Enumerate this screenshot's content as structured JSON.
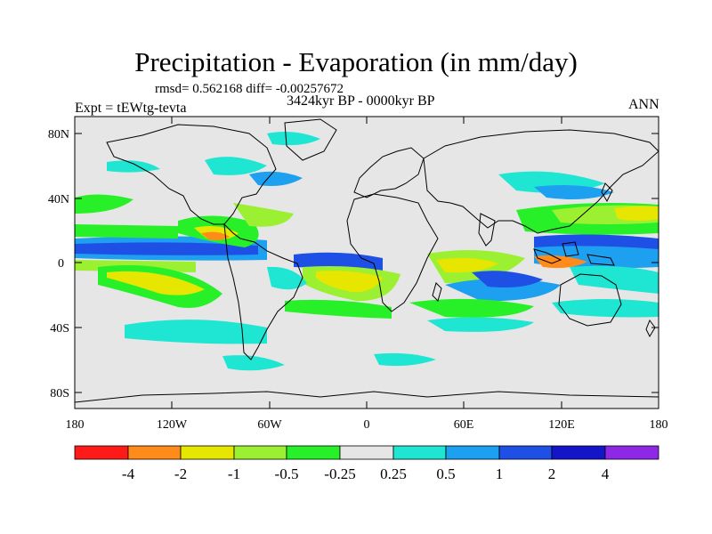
{
  "title": "Precipitation - Evaporation (in mm/day)",
  "stats": "rmsd= 0.562168  diff= -0.00257672",
  "period": "3424kyr BP - 0000kyr BP",
  "experiment": "Expt = tEWtg-tevta",
  "season": "ANN",
  "y_ticks": [
    "80N",
    "40N",
    "0",
    "40S",
    "80S"
  ],
  "x_ticks": [
    "180",
    "120W",
    "60W",
    "0",
    "60E",
    "120E",
    "180"
  ],
  "colorbar": {
    "colors": [
      "#ff1a1a",
      "#ff8c1a",
      "#e6e600",
      "#9bf032",
      "#28f028",
      "#e6e6e6",
      "#1ee6d2",
      "#1ea0f0",
      "#1e50e6",
      "#1414c8",
      "#8c28e6"
    ],
    "labels": [
      "-4",
      "-2",
      "-1",
      "-0.5",
      "-0.25",
      "0.25",
      "0.5",
      "1",
      "2",
      "4"
    ]
  },
  "colors": {
    "land": "#e6e6e6",
    "coast": "#000000"
  }
}
